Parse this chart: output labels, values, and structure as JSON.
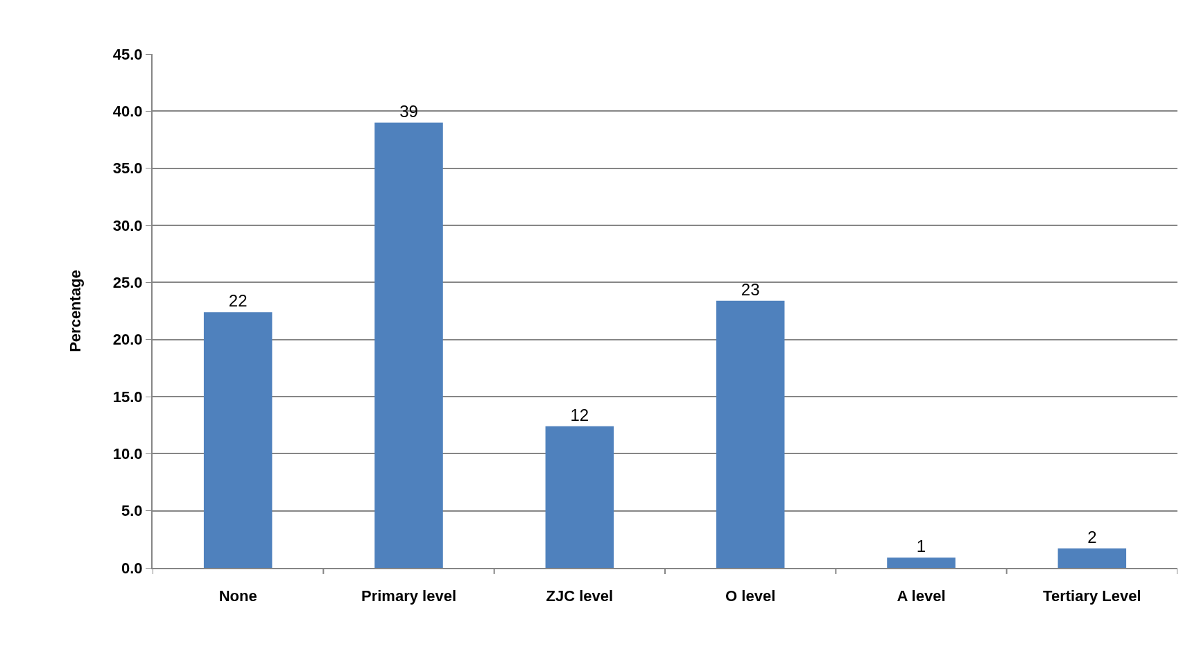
{
  "chart_data": {
    "type": "bar",
    "ylabel": "Percentage",
    "categories": [
      "None",
      "Primary level",
      "ZJC level",
      "O level",
      "A level",
      "Tertiary Level"
    ],
    "values": [
      22.4,
      39.0,
      12.4,
      23.4,
      0.9,
      1.7
    ],
    "value_labels": [
      "22",
      "39",
      "12",
      "23",
      "1",
      "2"
    ],
    "color": "#4f81bd",
    "ylim": [
      0,
      45
    ],
    "yticks": [
      {
        "value": 0,
        "label": "0.0"
      },
      {
        "value": 5,
        "label": "5.0"
      },
      {
        "value": 10,
        "label": "10.0"
      },
      {
        "value": 15,
        "label": "15.0"
      },
      {
        "value": 20,
        "label": "20.0"
      },
      {
        "value": 25,
        "label": "25.0"
      },
      {
        "value": 30,
        "label": "30.0"
      },
      {
        "value": 35,
        "label": "35.0"
      },
      {
        "value": 40,
        "label": "40.0"
      },
      {
        "value": 45,
        "label": "45.0"
      }
    ],
    "grid": "y",
    "legend": false
  }
}
